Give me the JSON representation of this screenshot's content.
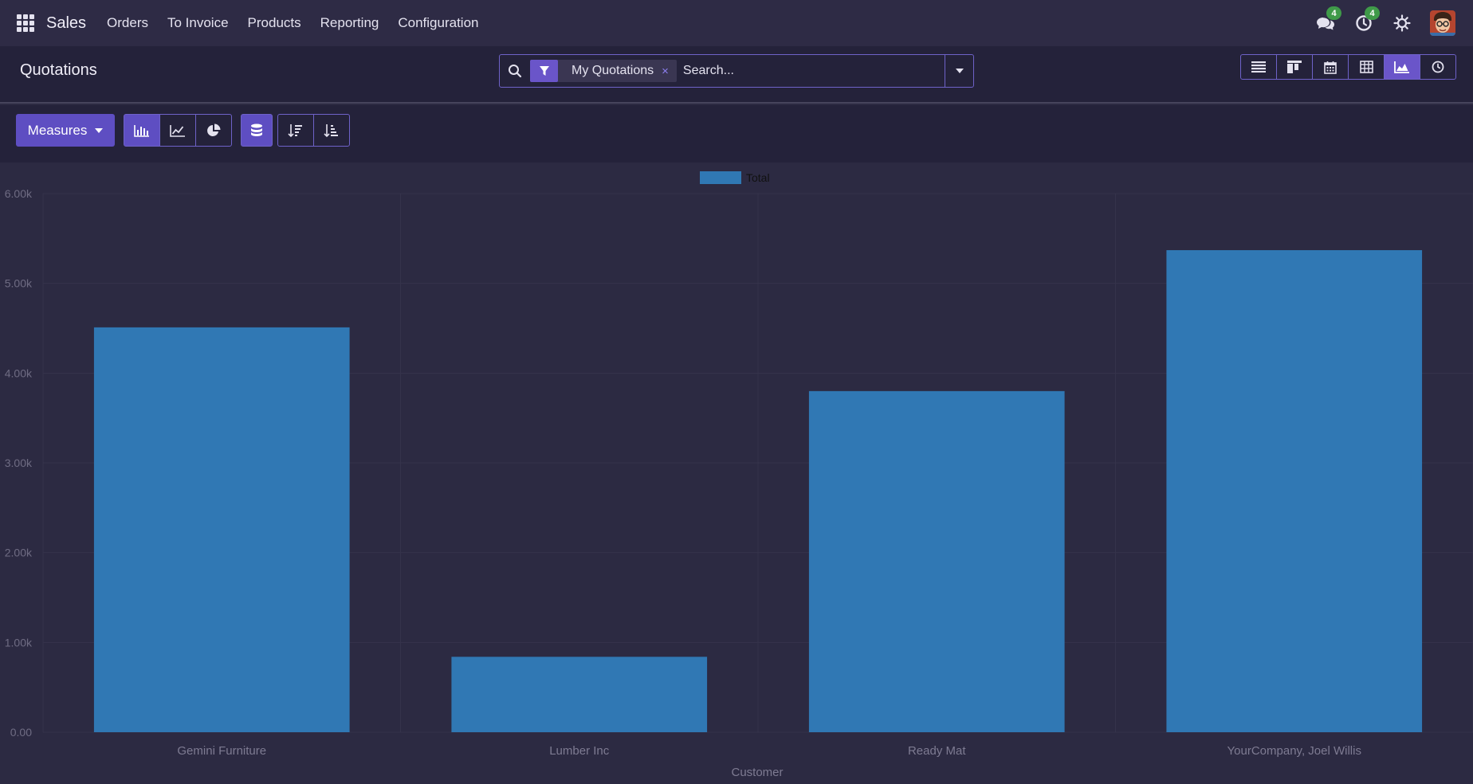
{
  "navbar": {
    "brand": "Sales",
    "menu": [
      "Orders",
      "To Invoice",
      "Products",
      "Reporting",
      "Configuration"
    ],
    "messages_count": "4",
    "activities_count": "4"
  },
  "control_panel": {
    "title": "Quotations",
    "facet_label": "My Quotations",
    "facet_close": "×",
    "search_placeholder": "Search..."
  },
  "toolbar": {
    "measures_label": "Measures"
  },
  "colors": {
    "bar": "#3078b4",
    "accent": "#6a55c9",
    "badge": "#3f9a49"
  },
  "chart_data": {
    "type": "bar",
    "categories": [
      "Gemini Furniture",
      "Lumber Inc",
      "Ready Mat",
      "YourCompany, Joel Willis"
    ],
    "series": [
      {
        "name": "Total",
        "values": [
          4510,
          840,
          3800,
          5370
        ]
      }
    ],
    "xlabel": "Customer",
    "ylabel": "",
    "ylim": [
      0,
      6000
    ],
    "yticks": [
      "0.00",
      "1.00k",
      "2.00k",
      "3.00k",
      "4.00k",
      "5.00k",
      "6.00k"
    ],
    "legend": "top-center",
    "grid": true
  }
}
